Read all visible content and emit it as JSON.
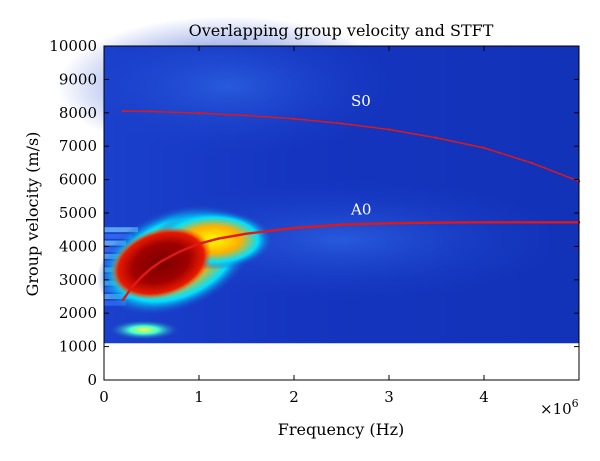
{
  "chart_data": {
    "type": "line",
    "title": "Overlapping group velocity and STFT",
    "xlabel": "Frequency (Hz)",
    "ylabel": "Group velocity (m/s)",
    "x_multiplier_label": "×10",
    "x_multiplier_exponent": "6",
    "xlim": [
      0,
      5
    ],
    "ylim": [
      0,
      10000
    ],
    "x_ticks": [
      0,
      1,
      2,
      3,
      4
    ],
    "x_tick_labels": [
      "0",
      "1",
      "2",
      "3",
      "4"
    ],
    "y_ticks": [
      0,
      1000,
      2000,
      3000,
      4000,
      5000,
      6000,
      7000,
      8000,
      9000,
      10000
    ],
    "y_tick_labels": [
      "0",
      "1000",
      "2000",
      "3000",
      "4000",
      "5000",
      "6000",
      "7000",
      "8000",
      "9000",
      "10000"
    ],
    "background_map": {
      "type": "heatmap",
      "x_range": [
        0,
        5
      ],
      "y_range": [
        1100,
        10000
      ],
      "colormap": "jet"
    },
    "series": [
      {
        "name": "S0",
        "color": "#e01818",
        "x": [
          0.2,
          0.5,
          1.0,
          1.5,
          2.0,
          2.5,
          3.0,
          3.5,
          4.0,
          4.5,
          5.0
        ],
        "y": [
          8050,
          8040,
          7990,
          7920,
          7820,
          7680,
          7500,
          7250,
          6950,
          6500,
          5950
        ]
      },
      {
        "name": "A0",
        "color": "#e01818",
        "x": [
          0.2,
          0.3,
          0.4,
          0.5,
          0.6,
          0.8,
          1.0,
          1.2,
          1.5,
          2.0,
          2.5,
          3.0,
          3.5,
          4.0,
          4.5,
          5.0
        ],
        "y": [
          2400,
          2800,
          3100,
          3350,
          3550,
          3850,
          4080,
          4230,
          4380,
          4550,
          4650,
          4690,
          4710,
          4720,
          4720,
          4720
        ]
      }
    ],
    "annotations": [
      {
        "text": "S0",
        "x": 2.6,
        "y": 8200
      },
      {
        "text": "A0",
        "x": 2.6,
        "y": 4950
      }
    ],
    "grid": false
  }
}
